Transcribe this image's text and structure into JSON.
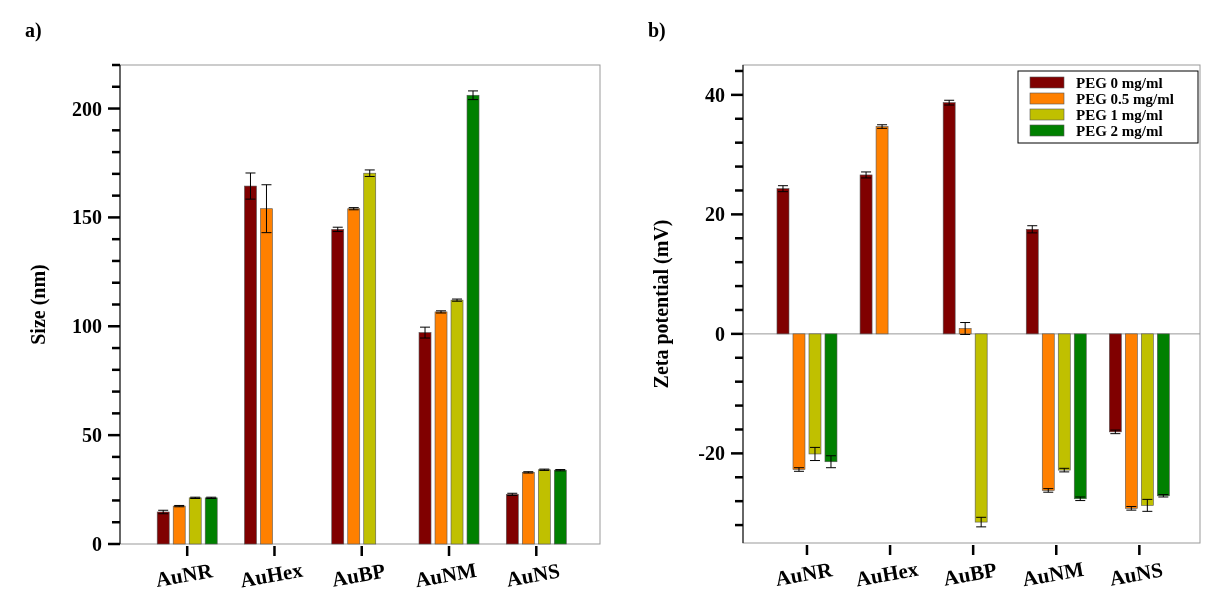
{
  "chart_data": [
    {
      "type": "bar",
      "title": "a)",
      "ylabel": "Size (nm)",
      "categories": [
        "AuNR",
        "AuHex",
        "AuBP",
        "AuNM",
        "AuNS"
      ],
      "ylim": [
        0,
        220
      ],
      "yticks": [
        0,
        {
          "value": 10,
          "label": null
        },
        {
          "value": 20,
          "label": null
        },
        {
          "value": 30,
          "label": null
        },
        {
          "value": 40,
          "label": null
        },
        50,
        {
          "value": 60,
          "label": null
        },
        {
          "value": 70,
          "label": null
        },
        {
          "value": 80,
          "label": null
        },
        {
          "value": 90,
          "label": null
        },
        100,
        {
          "value": 110,
          "label": null
        },
        {
          "value": 120,
          "label": null
        },
        {
          "value": 130,
          "label": null
        },
        {
          "value": 140,
          "label": null
        },
        150,
        {
          "value": 160,
          "label": null
        },
        {
          "value": 170,
          "label": null
        },
        {
          "value": 180,
          "label": null
        },
        {
          "value": 190,
          "label": null
        },
        200,
        {
          "value": 210,
          "label": null
        },
        {
          "value": 220,
          "label": null
        }
      ],
      "legend": false,
      "series": [
        {
          "color": "#800000",
          "values": [
            14.7,
            164.4,
            144.5,
            97.1,
            22.8
          ],
          "errors": [
            0.8,
            6,
            1,
            2.5,
            0.5
          ]
        },
        {
          "color": "#ff8000",
          "values": [
            17.4,
            154,
            154,
            106.6,
            32.9
          ],
          "errors": [
            0.3,
            11,
            0.5,
            0.5,
            0.3
          ]
        },
        {
          "color": "#c0c000",
          "values": [
            21.2,
            null,
            170.3,
            112,
            34.1
          ],
          "errors": [
            0.3,
            null,
            1.5,
            0.5,
            0.3
          ]
        },
        {
          "color": "#008000",
          "values": [
            21.2,
            null,
            null,
            206.1,
            33.9
          ],
          "errors": [
            0.3,
            null,
            null,
            2,
            0.3
          ]
        }
      ]
    },
    {
      "type": "bar",
      "title": "b)",
      "ylabel": "Zeta potential (mV)",
      "categories": [
        "AuNR",
        "AuHex",
        "AuBP",
        "AuNM",
        "AuNS"
      ],
      "ylim": [
        -35,
        45
      ],
      "yticks": [
        {
          "value": -32,
          "label": null
        },
        {
          "value": -28,
          "label": null
        },
        {
          "value": -24,
          "label": null
        },
        -20,
        {
          "value": -16,
          "label": null
        },
        {
          "value": -12,
          "label": null
        },
        {
          "value": -8,
          "label": null
        },
        {
          "value": -4,
          "label": null
        },
        0,
        {
          "value": 4,
          "label": null
        },
        {
          "value": 8,
          "label": null
        },
        {
          "value": 12,
          "label": null
        },
        {
          "value": 16,
          "label": null
        },
        20,
        {
          "value": 24,
          "label": null
        },
        {
          "value": 28,
          "label": null
        },
        {
          "value": 32,
          "label": null
        },
        {
          "value": 36,
          "label": null
        },
        40,
        {
          "value": 44,
          "label": null
        }
      ],
      "legend": "top right",
      "series": [
        {
          "name": "PEG 0 mg/ml",
          "color": "#800000",
          "values": [
            24.3,
            26.6,
            38.7,
            17.5,
            -16.4
          ],
          "errors": [
            0.5,
            0.5,
            0.4,
            0.6,
            0.3
          ]
        },
        {
          "name": "PEG 0.5 mg/ml",
          "color": "#ff8000",
          "values": [
            -22.7,
            34.7,
            0.9,
            -26.2,
            -29.2
          ],
          "errors": [
            0.3,
            0.3,
            1,
            0.3,
            0.3
          ]
        },
        {
          "name": "PEG 1 mg/ml",
          "color": "#c0c000",
          "values": [
            -20.1,
            null,
            -31.5,
            -22.8,
            -28.7
          ],
          "errors": [
            1.1,
            null,
            0.8,
            0.3,
            1
          ]
        },
        {
          "name": "PEG 2 mg/ml",
          "color": "#008000",
          "values": [
            -21.4,
            null,
            null,
            -27.6,
            -27.1
          ],
          "errors": [
            1,
            null,
            null,
            0.3,
            0.2
          ]
        }
      ]
    }
  ]
}
